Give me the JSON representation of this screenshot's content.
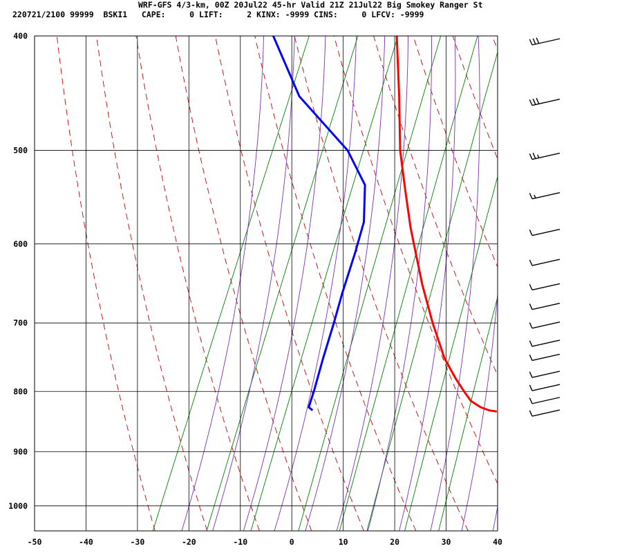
{
  "header": {
    "line1": "WRF-GFS 4/3-km, 00Z 20Jul22 45-hr Valid 21Z 21Jul22 Big Smokey Ranger St",
    "line2": "220721/2100 99999  BSKI1   CAPE:     0 LIFT:     2 KINX: -9999 CINS:     0 LFCV: -9999"
  },
  "chart_data": {
    "type": "line",
    "title": "WRF-GFS 4/3-km, 00Z 20Jul22 45-hr Valid 21Z 21Jul22 Big Smokey Ranger St",
    "xlabel": "",
    "ylabel": "",
    "xlim": [
      -50,
      40
    ],
    "ylim": [
      1050,
      400
    ],
    "y_scale": "log-pressure",
    "x_ticks": [
      "-50",
      "-40",
      "-30",
      "-20",
      "-10",
      "0",
      "10",
      "20",
      "30",
      "40"
    ],
    "y_ticks": [
      "400",
      "500",
      "600",
      "700",
      "800",
      "900",
      "1000"
    ],
    "grid": true,
    "colors": {
      "temperature": "#ff0000",
      "dewpoint": "#0000ff",
      "dry_adiabat": "#cc0000",
      "moist_adiabat": "#7b2fbe",
      "mixing_ratio": "#008000",
      "grid": "#000000"
    },
    "series": [
      {
        "key": "temperature",
        "points": [
          [
            400,
            -20
          ],
          [
            450,
            -14.6
          ],
          [
            500,
            -10
          ],
          [
            540,
            -5.8
          ],
          [
            580,
            -1.8
          ],
          [
            600,
            0.3
          ],
          [
            650,
            5.3
          ],
          [
            700,
            10.4
          ],
          [
            750,
            15.6
          ],
          [
            780,
            19.4
          ],
          [
            800,
            22.1
          ],
          [
            815,
            24.2
          ],
          [
            825,
            26.6
          ],
          [
            830,
            28.5
          ],
          [
            832,
            30.1
          ]
        ]
      },
      {
        "key": "dewpoint",
        "points": [
          [
            400,
            -44
          ],
          [
            450,
            -34
          ],
          [
            500,
            -20.2
          ],
          [
            535,
            -14
          ],
          [
            575,
            -11.2
          ],
          [
            610,
            -10.4
          ],
          [
            660,
            -9.6
          ],
          [
            700,
            -8.8
          ],
          [
            750,
            -8
          ],
          [
            800,
            -7.1
          ],
          [
            825,
            -6.8
          ],
          [
            830,
            -5.8
          ]
        ]
      }
    ],
    "wind_barbs": [
      {
        "pressure": 400,
        "speed_kt": 30
      },
      {
        "pressure": 450,
        "speed_kt": 30
      },
      {
        "pressure": 500,
        "speed_kt": 25
      },
      {
        "pressure": 540,
        "speed_kt": 15
      },
      {
        "pressure": 580,
        "speed_kt": 10
      },
      {
        "pressure": 615,
        "speed_kt": 10
      },
      {
        "pressure": 645,
        "speed_kt": 10
      },
      {
        "pressure": 670,
        "speed_kt": 10
      },
      {
        "pressure": 695,
        "speed_kt": 10
      },
      {
        "pressure": 720,
        "speed_kt": 10
      },
      {
        "pressure": 740,
        "speed_kt": 10
      },
      {
        "pressure": 765,
        "speed_kt": 10
      },
      {
        "pressure": 785,
        "speed_kt": 10
      },
      {
        "pressure": 805,
        "speed_kt": 10
      },
      {
        "pressure": 825,
        "speed_kt": 10
      }
    ]
  }
}
